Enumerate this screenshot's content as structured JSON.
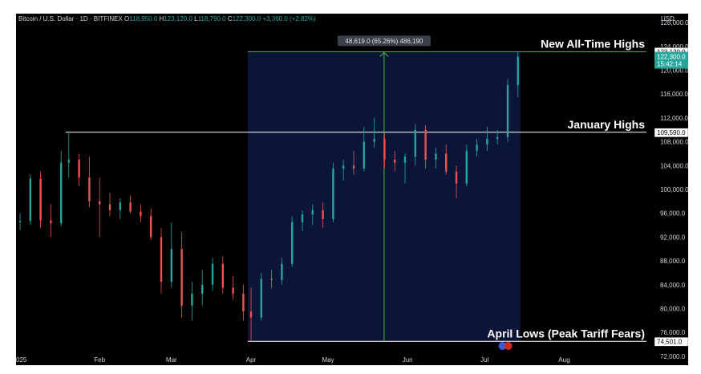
{
  "chart_data": {
    "type": "candlestick",
    "symbol_line": {
      "name": "Bitcoin / U.S. Dollar · 1D · BITFINEX",
      "o_label": "O",
      "o": "118,950.0",
      "h_label": "H",
      "h": "123,120.0",
      "l_label": "L",
      "l": "118,790.0",
      "c_label": "C",
      "c": "122,300.0",
      "change": "+3,360.0 (+2.82%)"
    },
    "currency": "USD",
    "y_ticks": [
      72000,
      76000,
      80000,
      84000,
      88000,
      92000,
      96000,
      100000,
      104000,
      108000,
      112000,
      116000,
      120000,
      124000,
      128000
    ],
    "y_tick_labels": [
      "72,000.0",
      "76,000.0",
      "80,000.0",
      "84,000.0",
      "88,000.0",
      "92,000.0",
      "96,000.0",
      "100,000.0",
      "104,000.0",
      "108,000.0",
      "112,000.0",
      "116,000.0",
      "120,000.0",
      "124,000.0",
      "128,000.0"
    ],
    "ylim": [
      70500,
      129500
    ],
    "x_ticks": [
      {
        "label": "025",
        "day": 0
      },
      {
        "label": "Feb",
        "day": 31
      },
      {
        "label": "Mar",
        "day": 59
      },
      {
        "label": "Apr",
        "day": 90
      },
      {
        "label": "May",
        "day": 120
      },
      {
        "label": "Jun",
        "day": 151
      },
      {
        "label": "Jul",
        "day": 181
      },
      {
        "label": "Aug",
        "day": 212
      }
    ],
    "price_tags": [
      {
        "label": "123,120.0",
        "value": 123120,
        "style": "white"
      },
      {
        "label": "122,300.0",
        "value": 122300,
        "style": "green",
        "sub": "15:42:14"
      },
      {
        "label": "109,590.0",
        "value": 109590,
        "style": "white"
      },
      {
        "label": "74,501.0",
        "value": 74501,
        "style": "white"
      }
    ],
    "levels": [
      {
        "name": "New All-Time Highs",
        "value": 123120,
        "from_day": 90
      },
      {
        "name": "January Highs",
        "value": 109590,
        "from_day": 19
      },
      {
        "name": "April Lows (Peak Tariff Fears)",
        "value": 74501,
        "from_day": 90
      }
    ],
    "measure": {
      "from_day": 90,
      "to_day": 194,
      "low": 74501,
      "high": 123120,
      "label": "48,619.0 (65.26%) 486,190"
    },
    "series": [
      {
        "day": 0,
        "o": 94500,
        "h": 96000,
        "l": 93200,
        "c": 94700
      },
      {
        "day": 4,
        "o": 94700,
        "h": 102500,
        "l": 94000,
        "c": 101800
      },
      {
        "day": 8,
        "o": 101800,
        "h": 103000,
        "l": 93500,
        "c": 94800
      },
      {
        "day": 12,
        "o": 94800,
        "h": 97500,
        "l": 92000,
        "c": 94300
      },
      {
        "day": 16,
        "o": 94300,
        "h": 106500,
        "l": 93800,
        "c": 104500
      },
      {
        "day": 19,
        "o": 104500,
        "h": 109590,
        "l": 102000,
        "c": 105000
      },
      {
        "day": 23,
        "o": 105000,
        "h": 106000,
        "l": 100500,
        "c": 102000
      },
      {
        "day": 27,
        "o": 102000,
        "h": 105500,
        "l": 97000,
        "c": 98000
      },
      {
        "day": 31,
        "o": 98000,
        "h": 102000,
        "l": 92000,
        "c": 97500
      },
      {
        "day": 35,
        "o": 97500,
        "h": 99500,
        "l": 95500,
        "c": 96500
      },
      {
        "day": 39,
        "o": 96500,
        "h": 98500,
        "l": 95000,
        "c": 97800
      },
      {
        "day": 43,
        "o": 97800,
        "h": 99000,
        "l": 96000,
        "c": 96300
      },
      {
        "day": 47,
        "o": 96300,
        "h": 97500,
        "l": 94500,
        "c": 95500
      },
      {
        "day": 51,
        "o": 95500,
        "h": 96800,
        "l": 91500,
        "c": 92000
      },
      {
        "day": 55,
        "o": 92000,
        "h": 93500,
        "l": 82500,
        "c": 84500
      },
      {
        "day": 59,
        "o": 84500,
        "h": 94500,
        "l": 83500,
        "c": 90000
      },
      {
        "day": 63,
        "o": 90000,
        "h": 92800,
        "l": 78500,
        "c": 80500
      },
      {
        "day": 67,
        "o": 80500,
        "h": 84500,
        "l": 78000,
        "c": 82500
      },
      {
        "day": 71,
        "o": 82500,
        "h": 86500,
        "l": 80500,
        "c": 84000
      },
      {
        "day": 75,
        "o": 84000,
        "h": 88500,
        "l": 83000,
        "c": 87500
      },
      {
        "day": 79,
        "o": 87500,
        "h": 88800,
        "l": 82500,
        "c": 83500
      },
      {
        "day": 83,
        "o": 83500,
        "h": 85500,
        "l": 81500,
        "c": 82500
      },
      {
        "day": 87,
        "o": 82500,
        "h": 84000,
        "l": 78000,
        "c": 79500
      },
      {
        "day": 90,
        "o": 79500,
        "h": 83500,
        "l": 74501,
        "c": 78500
      },
      {
        "day": 94,
        "o": 78500,
        "h": 86000,
        "l": 78000,
        "c": 85000
      },
      {
        "day": 98,
        "o": 85000,
        "h": 86500,
        "l": 83500,
        "c": 84800
      },
      {
        "day": 102,
        "o": 84800,
        "h": 88500,
        "l": 84000,
        "c": 87500
      },
      {
        "day": 106,
        "o": 87500,
        "h": 95500,
        "l": 87000,
        "c": 94500
      },
      {
        "day": 110,
        "o": 94500,
        "h": 96500,
        "l": 93000,
        "c": 95800
      },
      {
        "day": 114,
        "o": 95800,
        "h": 97500,
        "l": 94000,
        "c": 96500
      },
      {
        "day": 118,
        "o": 96500,
        "h": 97800,
        "l": 93500,
        "c": 95000
      },
      {
        "day": 122,
        "o": 95000,
        "h": 104500,
        "l": 94500,
        "c": 103500
      },
      {
        "day": 126,
        "o": 103500,
        "h": 105000,
        "l": 101500,
        "c": 104000
      },
      {
        "day": 130,
        "o": 104000,
        "h": 106500,
        "l": 102500,
        "c": 103500
      },
      {
        "day": 134,
        "o": 103500,
        "h": 110500,
        "l": 103000,
        "c": 108000
      },
      {
        "day": 138,
        "o": 108000,
        "h": 112000,
        "l": 107000,
        "c": 108500
      },
      {
        "day": 142,
        "o": 108500,
        "h": 109500,
        "l": 103500,
        "c": 105000
      },
      {
        "day": 146,
        "o": 105000,
        "h": 106500,
        "l": 103000,
        "c": 104500
      },
      {
        "day": 150,
        "o": 104500,
        "h": 106000,
        "l": 101000,
        "c": 105500
      },
      {
        "day": 154,
        "o": 105500,
        "h": 111000,
        "l": 104000,
        "c": 110000
      },
      {
        "day": 158,
        "o": 110000,
        "h": 110800,
        "l": 103500,
        "c": 105000
      },
      {
        "day": 162,
        "o": 105000,
        "h": 107000,
        "l": 103500,
        "c": 106000
      },
      {
        "day": 166,
        "o": 106000,
        "h": 107500,
        "l": 102500,
        "c": 103000
      },
      {
        "day": 170,
        "o": 103000,
        "h": 104000,
        "l": 98500,
        "c": 101000
      },
      {
        "day": 174,
        "o": 101000,
        "h": 107500,
        "l": 100500,
        "c": 106500
      },
      {
        "day": 178,
        "o": 106500,
        "h": 108500,
        "l": 105500,
        "c": 107500
      },
      {
        "day": 182,
        "o": 107500,
        "h": 110500,
        "l": 106500,
        "c": 108500
      },
      {
        "day": 186,
        "o": 108500,
        "h": 110000,
        "l": 107500,
        "c": 108800
      },
      {
        "day": 190,
        "o": 108800,
        "h": 118500,
        "l": 108000,
        "c": 117500
      },
      {
        "day": 194,
        "o": 117500,
        "h": 123120,
        "l": 115500,
        "c": 122300
      }
    ],
    "colors": {
      "up": "#26a69a",
      "down": "#ef5350",
      "highlight_box": "#0b1538",
      "measure_line": "#4caf50",
      "level_line": "#ffffff",
      "background": "#000000"
    }
  }
}
